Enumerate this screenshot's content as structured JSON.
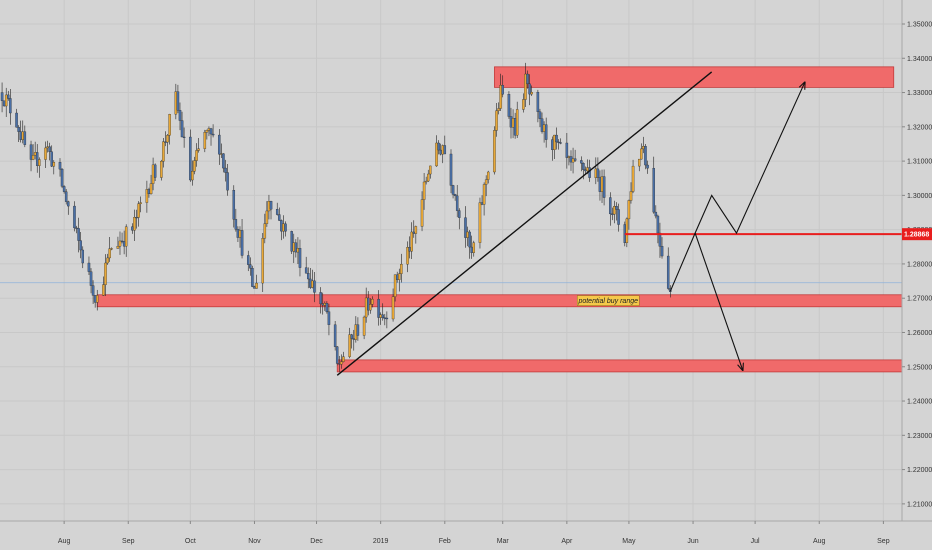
{
  "chart_data": {
    "type": "candlestick",
    "title": "",
    "xlabel": "",
    "ylabel": "",
    "x_range": [
      "2018-07-01",
      "2019-09-10"
    ],
    "ylim": [
      1.205,
      1.357
    ],
    "grid": true,
    "y_ticks": [
      "1.21000",
      "1.22000",
      "1.23000",
      "1.24000",
      "1.25000",
      "1.26000",
      "1.27000",
      "1.28000",
      "1.29000",
      "1.30000",
      "1.31000",
      "1.32000",
      "1.33000",
      "1.34000",
      "1.35000"
    ],
    "x_ticks": [
      {
        "label": "Aug",
        "date": "2018-08-01"
      },
      {
        "label": "Sep",
        "date": "2018-09-01"
      },
      {
        "label": "Oct",
        "date": "2018-10-01"
      },
      {
        "label": "Nov",
        "date": "2018-11-01"
      },
      {
        "label": "Dec",
        "date": "2018-12-01"
      },
      {
        "label": "2019",
        "date": "2019-01-01"
      },
      {
        "label": "Feb",
        "date": "2019-02-01"
      },
      {
        "label": "Mar",
        "date": "2019-03-01"
      },
      {
        "label": "Apr",
        "date": "2019-04-01"
      },
      {
        "label": "May",
        "date": "2019-05-01"
      },
      {
        "label": "Jun",
        "date": "2019-06-01"
      },
      {
        "label": "Jul",
        "date": "2019-07-01"
      },
      {
        "label": "Aug",
        "date": "2019-08-01"
      },
      {
        "label": "Sep",
        "date": "2019-09-01"
      }
    ],
    "price_path": [
      [
        "2018-07-02",
        1.33
      ],
      [
        "2018-07-09",
        1.322
      ],
      [
        "2018-07-16",
        1.308
      ],
      [
        "2018-07-23",
        1.315
      ],
      [
        "2018-07-30",
        1.305
      ],
      [
        "2018-08-06",
        1.29
      ],
      [
        "2018-08-13",
        1.276
      ],
      [
        "2018-08-17",
        1.27
      ],
      [
        "2018-08-24",
        1.285
      ],
      [
        "2018-09-03",
        1.29
      ],
      [
        "2018-09-10",
        1.302
      ],
      [
        "2018-09-17",
        1.312
      ],
      [
        "2018-09-24",
        1.328
      ],
      [
        "2018-10-01",
        1.305
      ],
      [
        "2018-10-08",
        1.318
      ],
      [
        "2018-10-15",
        1.315
      ],
      [
        "2018-10-22",
        1.295
      ],
      [
        "2018-10-29",
        1.278
      ],
      [
        "2018-11-01",
        1.272
      ],
      [
        "2018-11-08",
        1.3
      ],
      [
        "2018-11-15",
        1.29
      ],
      [
        "2018-11-22",
        1.283
      ],
      [
        "2018-11-29",
        1.274
      ],
      [
        "2018-12-06",
        1.265
      ],
      [
        "2018-12-11",
        1.25
      ],
      [
        "2018-12-20",
        1.26
      ],
      [
        "2018-12-27",
        1.27
      ],
      [
        "2019-01-03",
        1.265
      ],
      [
        "2019-01-10",
        1.278
      ],
      [
        "2019-01-17",
        1.288
      ],
      [
        "2019-01-25",
        1.31
      ],
      [
        "2019-01-31",
        1.315
      ],
      [
        "2019-02-07",
        1.298
      ],
      [
        "2019-02-14",
        1.282
      ],
      [
        "2019-02-21",
        1.305
      ],
      [
        "2019-02-28",
        1.33
      ],
      [
        "2019-03-07",
        1.32
      ],
      [
        "2019-03-12",
        1.333
      ],
      [
        "2019-03-19",
        1.32
      ],
      [
        "2019-03-26",
        1.315
      ],
      [
        "2019-04-03",
        1.308
      ],
      [
        "2019-04-10",
        1.308
      ],
      [
        "2019-04-17",
        1.304
      ],
      [
        "2019-04-24",
        1.295
      ],
      [
        "2019-04-29",
        1.288
      ],
      [
        "2019-05-03",
        1.308
      ],
      [
        "2019-05-08",
        1.315
      ],
      [
        "2019-05-15",
        1.29
      ],
      [
        "2019-05-21",
        1.272
      ]
    ],
    "zones": [
      {
        "y_top": 1.3375,
        "y_bottom": 1.3315,
        "start": "2019-02-25",
        "end": "2019-09-06"
      },
      {
        "y_top": 1.271,
        "y_bottom": 1.2675,
        "start": "2018-08-17",
        "end": "2019-09-10"
      },
      {
        "y_top": 1.252,
        "y_bottom": 1.2485,
        "start": "2018-12-11",
        "end": "2019-09-10"
      }
    ],
    "lines": {
      "trendline": {
        "start": [
          "2018-12-11",
          1.2475
        ],
        "end": [
          "2019-06-10",
          1.336
        ]
      },
      "horizontal": {
        "y": 1.28868,
        "start": "2019-04-29",
        "label": "1.28868"
      },
      "current_price": 1.2745
    },
    "arrows": [
      [
        [
          "2019-05-21",
          1.272
        ],
        [
          "2019-06-02",
          1.289
        ],
        [
          "2019-06-10",
          1.3
        ],
        [
          "2019-06-22",
          1.289
        ],
        [
          "2019-07-25",
          1.333
        ]
      ],
      [
        [
          "2019-06-02",
          1.289
        ],
        [
          "2019-06-25",
          1.249
        ]
      ]
    ],
    "annotations": [
      {
        "text": "potential buy range",
        "date": "2019-04-21",
        "y": 1.2693
      }
    ]
  },
  "colors": {
    "background": "#d4d4d4",
    "grid": "#c8c8c8",
    "bull_candle": "#e8a838",
    "bear_candle": "#4a6fa5",
    "zone_fill": "#f06a6a",
    "zone_stroke": "#c23b3b",
    "level_line": "#e81e1e",
    "price_tag": "#e81e1e",
    "current_price_line": "#8fb2d9"
  }
}
